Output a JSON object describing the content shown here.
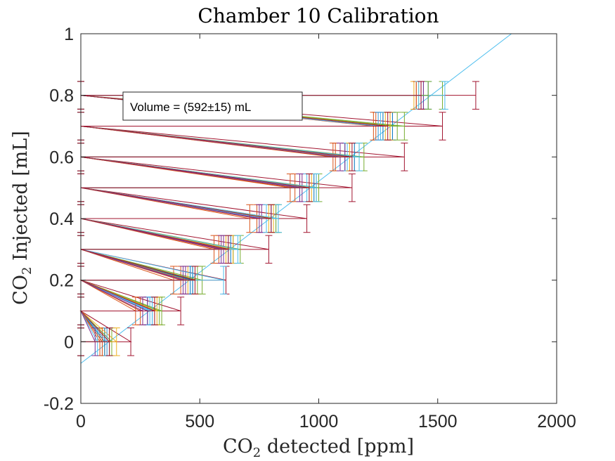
{
  "chart_data": {
    "type": "line",
    "title": "Chamber 10 Calibration",
    "xlabel": "CO2 detected [ppm]",
    "ylabel": "CO2 Injected [mL]",
    "xlim": [
      0,
      2000
    ],
    "ylim": [
      -0.2,
      1
    ],
    "xticks": [
      "0",
      "500",
      "1000",
      "1500",
      "2000"
    ],
    "yticks": [
      "-0.2",
      "0",
      "0.2",
      "0.4",
      "0.6",
      "0.8",
      "1"
    ],
    "annotation": "Volume = (592±15) mL",
    "grid": false,
    "palette": [
      "#0072BD",
      "#D95319",
      "#EDB120",
      "#7E2F8E",
      "#77AC30",
      "#4DBEEE",
      "#A2142F"
    ],
    "fit_line": {
      "color": "#4DBEEE",
      "x": [
        0,
        1810
      ],
      "y": [
        -0.07,
        1.0
      ]
    },
    "series": [
      {
        "color": "#A2142F",
        "x": [
          0,
          210,
          0,
          420,
          0,
          610,
          0,
          790,
          0,
          950,
          0,
          1140,
          0,
          1360,
          0,
          1520,
          0,
          1660
        ],
        "y": [
          0,
          0,
          0.1,
          0.1,
          0.2,
          0.2,
          0.3,
          0.3,
          0.4,
          0.4,
          0.5,
          0.5,
          0.6,
          0.6,
          0.7,
          0.7,
          0.8,
          0.8
        ],
        "xerr": 0,
        "yerr": 0.045
      },
      {
        "color": "#77AC30",
        "x": [
          0,
          120,
          0,
          330,
          0,
          510,
          0,
          670,
          0,
          830,
          0,
          1000,
          0,
          1190,
          0,
          1360,
          0,
          1520
        ],
        "y": [
          0,
          0,
          0.1,
          0.1,
          0.2,
          0.2,
          0.3,
          0.3,
          0.4,
          0.4,
          0.5,
          0.5,
          0.6,
          0.6,
          0.7,
          0.7,
          0.8,
          0.8
        ],
        "xerr": 0,
        "yerr": 0.045
      },
      {
        "color": "#0072BD",
        "x": [
          0,
          90,
          0,
          280,
          0,
          460,
          0,
          630,
          0,
          800,
          0,
          960,
          0,
          1110,
          0,
          1270,
          0,
          1440
        ],
        "y": [
          0,
          0,
          0.1,
          0.1,
          0.2,
          0.2,
          0.3,
          0.3,
          0.4,
          0.4,
          0.5,
          0.5,
          0.6,
          0.6,
          0.7,
          0.7,
          0.8,
          0.8
        ],
        "xerr": 0,
        "yerr": 0.045
      },
      {
        "color": "#D95319",
        "x": [
          0,
          80,
          0,
          250,
          0,
          420,
          0,
          580,
          0,
          740,
          0,
          900,
          0,
          1060,
          0,
          1230,
          0,
          1410
        ],
        "y": [
          0,
          0,
          0.1,
          0.1,
          0.2,
          0.2,
          0.3,
          0.3,
          0.4,
          0.4,
          0.5,
          0.5,
          0.6,
          0.6,
          0.7,
          0.7,
          0.8,
          0.8
        ],
        "xerr": 0,
        "yerr": 0.045
      },
      {
        "color": "#EDB120",
        "x": [
          0,
          100,
          0,
          310,
          0,
          450,
          0,
          610,
          0,
          790,
          0,
          960,
          0,
          1130,
          0,
          1280,
          0,
          1400
        ],
        "y": [
          0,
          0,
          0.1,
          0.1,
          0.2,
          0.2,
          0.3,
          0.3,
          0.4,
          0.4,
          0.5,
          0.5,
          0.6,
          0.6,
          0.7,
          0.7,
          0.8,
          0.8
        ],
        "xerr": 0,
        "yerr": 0.045
      },
      {
        "color": "#7E2F8E",
        "x": [
          0,
          110,
          0,
          280,
          0,
          440,
          0,
          600,
          0,
          760,
          0,
          930,
          0,
          1110,
          0,
          1300,
          0,
          1440
        ],
        "y": [
          0,
          0,
          0.1,
          0.1,
          0.2,
          0.2,
          0.3,
          0.3,
          0.4,
          0.4,
          0.5,
          0.5,
          0.6,
          0.6,
          0.7,
          0.7,
          0.8,
          0.8
        ],
        "xerr": 0,
        "yerr": 0.045
      },
      {
        "color": "#4DBEEE",
        "x": [
          0,
          70,
          0,
          290,
          0,
          470,
          0,
          620,
          0,
          780,
          0,
          950,
          0,
          1120,
          0,
          1260,
          0,
          1530
        ],
        "y": [
          0,
          0,
          0.1,
          0.1,
          0.2,
          0.2,
          0.3,
          0.3,
          0.4,
          0.4,
          0.5,
          0.5,
          0.6,
          0.6,
          0.7,
          0.7,
          0.8,
          0.8
        ],
        "xerr": 0,
        "yerr": 0.045
      },
      {
        "color": "#0072BD",
        "x": [
          0,
          100,
          0,
          300,
          0,
          470,
          0,
          640,
          0,
          820,
          0,
          980,
          0,
          1150,
          0,
          1310,
          0,
          1460
        ],
        "y": [
          0,
          0,
          0.1,
          0.1,
          0.2,
          0.2,
          0.3,
          0.3,
          0.4,
          0.4,
          0.5,
          0.5,
          0.6,
          0.6,
          0.7,
          0.7,
          0.8,
          0.8
        ],
        "xerr": 0,
        "yerr": 0.045
      },
      {
        "color": "#D95319",
        "x": [
          0,
          90,
          0,
          230,
          0,
          390,
          0,
          560,
          0,
          710,
          0,
          880,
          0,
          1070,
          0,
          1240,
          0,
          1410
        ],
        "y": [
          0,
          0,
          0.1,
          0.1,
          0.2,
          0.2,
          0.3,
          0.3,
          0.4,
          0.4,
          0.5,
          0.5,
          0.6,
          0.6,
          0.7,
          0.7,
          0.8,
          0.8
        ],
        "xerr": 0,
        "yerr": 0.045
      },
      {
        "color": "#77AC30",
        "x": [
          0,
          130,
          0,
          340,
          0,
          490,
          0,
          640,
          0,
          820,
          0,
          990,
          0,
          1170,
          0,
          1330,
          0,
          1460
        ],
        "y": [
          0,
          0,
          0.1,
          0.1,
          0.2,
          0.2,
          0.3,
          0.3,
          0.4,
          0.4,
          0.5,
          0.5,
          0.6,
          0.6,
          0.7,
          0.7,
          0.8,
          0.8
        ],
        "xerr": 0,
        "yerr": 0.045
      },
      {
        "color": "#7E2F8E",
        "x": [
          0,
          60,
          0,
          260,
          0,
          430,
          0,
          590,
          0,
          750,
          0,
          920,
          0,
          1090,
          0,
          1250,
          0,
          1430
        ],
        "y": [
          0,
          0,
          0.1,
          0.1,
          0.2,
          0.2,
          0.3,
          0.3,
          0.4,
          0.4,
          0.5,
          0.5,
          0.6,
          0.6,
          0.7,
          0.7,
          0.8,
          0.8
        ],
        "xerr": 0,
        "yerr": 0.045
      },
      {
        "color": "#EDB120",
        "x": [
          0,
          150,
          0,
          320,
          0,
          480,
          0,
          640,
          0,
          810,
          0,
          970,
          0,
          1130,
          0,
          1300,
          0,
          1420
        ],
        "y": [
          0,
          0,
          0.1,
          0.1,
          0.2,
          0.2,
          0.3,
          0.3,
          0.4,
          0.4,
          0.5,
          0.5,
          0.6,
          0.6,
          0.7,
          0.7,
          0.8,
          0.8
        ],
        "xerr": 0,
        "yerr": 0.045
      },
      {
        "color": "#4DBEEE",
        "x": [
          0,
          110,
          0,
          300,
          0,
          600,
          0,
          660,
          0,
          830,
          0,
          990,
          0,
          1170,
          0,
          1250,
          0,
          1420
        ],
        "y": [
          0,
          0,
          0.1,
          0.1,
          0.2,
          0.2,
          0.3,
          0.3,
          0.4,
          0.4,
          0.5,
          0.5,
          0.6,
          0.6,
          0.7,
          0.7,
          0.8,
          0.8
        ],
        "xerr": 0,
        "yerr": 0.045
      },
      {
        "color": "#A2142F",
        "x": [
          0,
          120,
          0,
          310,
          0,
          480,
          0,
          620,
          0,
          800,
          0,
          960,
          0,
          1140,
          0,
          1290,
          0,
          1430
        ],
        "y": [
          0,
          0,
          0.1,
          0.1,
          0.2,
          0.2,
          0.3,
          0.3,
          0.4,
          0.4,
          0.5,
          0.5,
          0.6,
          0.6,
          0.7,
          0.7,
          0.8,
          0.8
        ],
        "xerr": 0,
        "yerr": 0.045
      }
    ]
  }
}
